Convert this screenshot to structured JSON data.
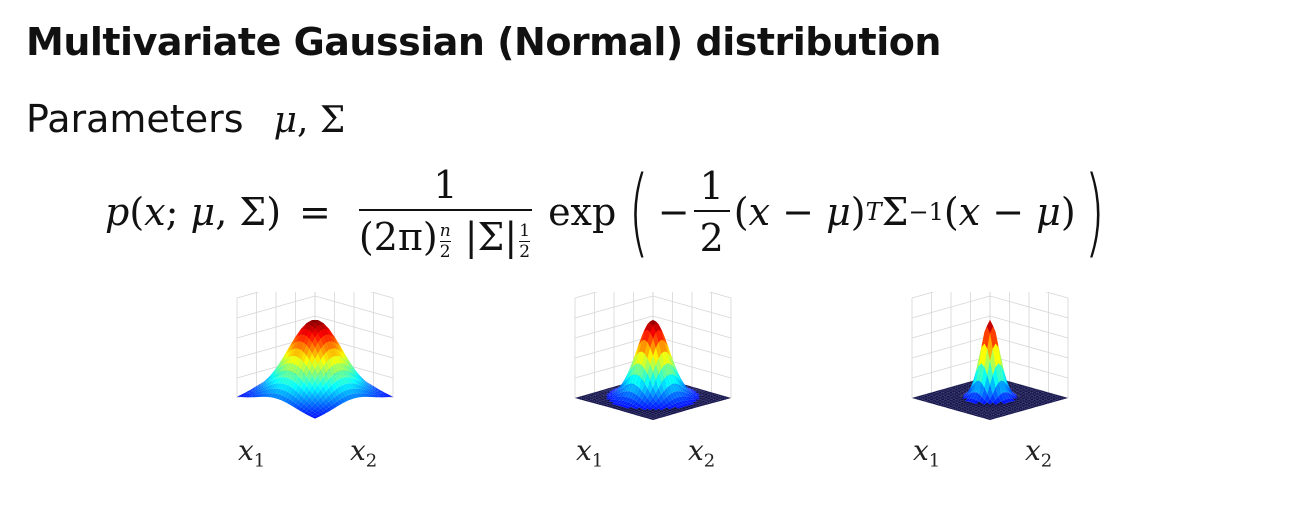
{
  "title": "Multivariate Gaussian (Normal) distribution",
  "params": {
    "label": "Parameters",
    "mu": "μ",
    "comma": ",",
    "sigma": "Σ"
  },
  "formula": {
    "lhs": "p(x; μ, Σ)",
    "equals": "=",
    "numerator": "1",
    "denominator_base": "(2π)",
    "exp_num": "n",
    "exp_den": "2",
    "abs_sigma": "|Σ|",
    "half_num": "1",
    "half_den": "2",
    "exp": "exp",
    "minus": "−",
    "inner_num": "1",
    "inner_den": "2",
    "quad_a": "(x − μ)",
    "T": "T",
    "sigma": "Σ",
    "inv": "−1",
    "quad_b": "(x − μ)"
  },
  "plots": [
    {
      "x1": "x",
      "x1_sub": "1",
      "x2": "x",
      "x2_sub": "2",
      "spread": 1.0
    },
    {
      "x1": "x",
      "x1_sub": "1",
      "x2": "x",
      "x2_sub": "2",
      "spread": 0.6
    },
    {
      "x1": "x",
      "x1_sub": "1",
      "x2": "x",
      "x2_sub": "2",
      "spread": 0.35
    }
  ]
}
